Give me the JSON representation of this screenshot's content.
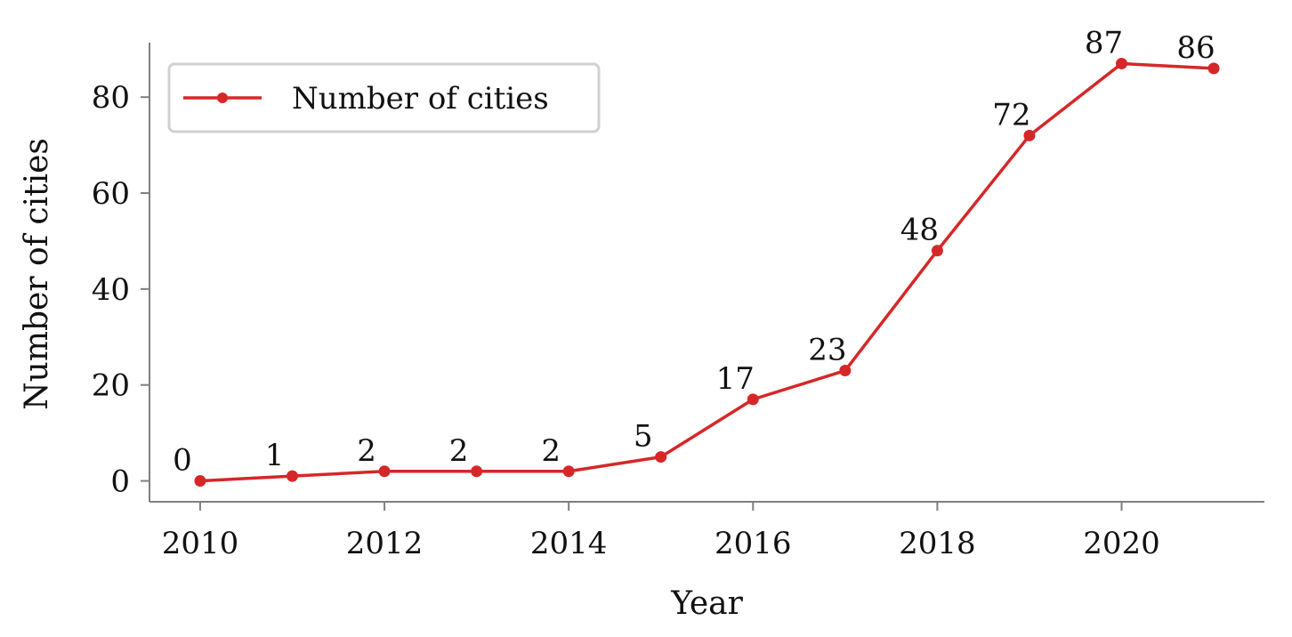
{
  "chart_data": {
    "type": "line",
    "xlabel": "Year",
    "ylabel": "Number of cities",
    "x": [
      2010,
      2011,
      2012,
      2013,
      2014,
      2015,
      2016,
      2017,
      2018,
      2019,
      2020,
      2021
    ],
    "series": [
      {
        "name": "Number of cities",
        "values": [
          0,
          1,
          2,
          2,
          2,
          5,
          17,
          23,
          48,
          72,
          87,
          86
        ],
        "color": "#d62728",
        "marker": "circle"
      }
    ],
    "data_labels": [
      "0",
      "1",
      "2",
      "2",
      "2",
      "5",
      "17",
      "23",
      "48",
      "72",
      "87",
      "86"
    ],
    "xticks": [
      2010,
      2012,
      2014,
      2016,
      2018,
      2020
    ],
    "xtick_labels": [
      "2010",
      "2012",
      "2014",
      "2016",
      "2018",
      "2020"
    ],
    "yticks": [
      0,
      20,
      40,
      60,
      80
    ],
    "ytick_labels": [
      "0",
      "20",
      "40",
      "60",
      "80"
    ],
    "xlim": [
      2009.45,
      2021.55
    ],
    "ylim": [
      -4.35,
      91.35
    ],
    "grid": false,
    "legend": {
      "position": "top-left",
      "entries": [
        "Number of cities"
      ]
    },
    "spines": [
      "left",
      "bottom"
    ],
    "axis_color": "#7f7f7f"
  }
}
